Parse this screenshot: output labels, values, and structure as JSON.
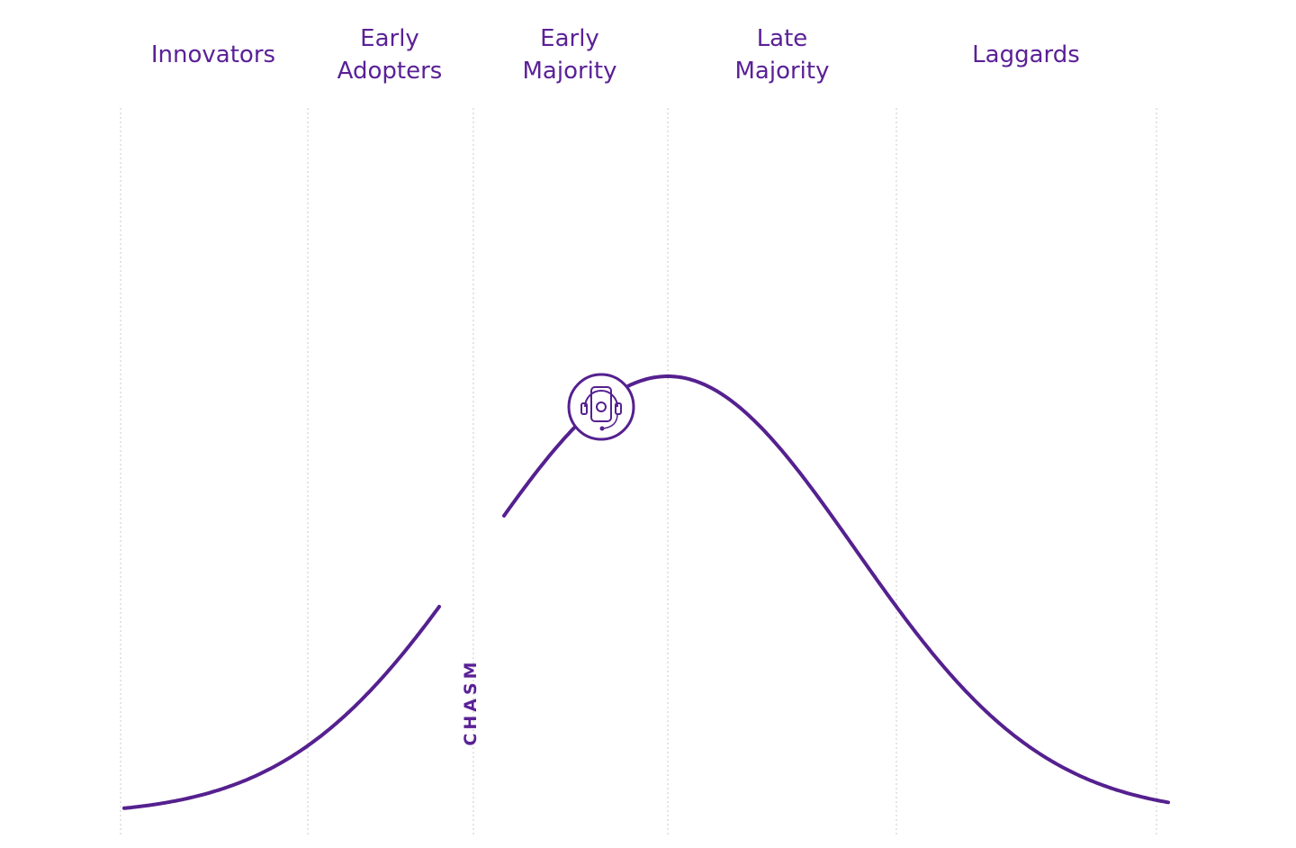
{
  "segments": [
    {
      "lines": [
        "Innovators"
      ]
    },
    {
      "lines": [
        "Early",
        "Adopters"
      ]
    },
    {
      "lines": [
        "Early",
        "Majority"
      ]
    },
    {
      "lines": [
        "Late",
        "Majority"
      ]
    },
    {
      "lines": [
        "Laggards"
      ]
    }
  ],
  "chasm": "CHASM"
}
